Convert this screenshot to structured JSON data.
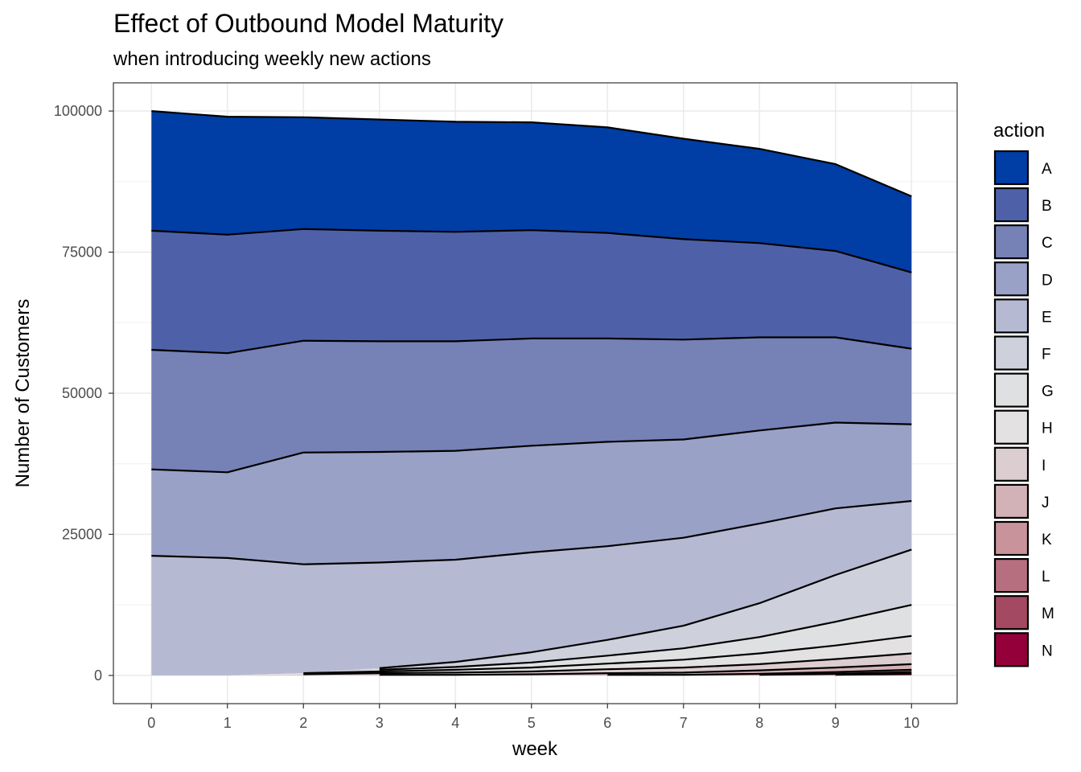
{
  "chart_data": {
    "type": "area",
    "stacked": true,
    "title": "Effect of Outbound Model Maturity",
    "subtitle": "when introducing weekly new actions",
    "xlabel": "week",
    "ylabel": "Number of Customers",
    "xlim": [
      -0.5,
      10.6
    ],
    "ylim": [
      -5000,
      105000
    ],
    "x": [
      0,
      1,
      2,
      3,
      4,
      5,
      6,
      7,
      8,
      9,
      10
    ],
    "x_ticks": [
      "0",
      "1",
      "2",
      "3",
      "4",
      "5",
      "6",
      "7",
      "8",
      "9",
      "10"
    ],
    "y_ticks": [
      0,
      25000,
      50000,
      75000,
      100000
    ],
    "y_tick_labels": [
      "0",
      "25000",
      "50000",
      "75000",
      "100000"
    ],
    "grid": true,
    "legend_title": "action",
    "legend_position": "right",
    "series": [
      {
        "name": "A",
        "color": "#003da5",
        "values": [
          21200,
          20900,
          19800,
          19700,
          19500,
          19100,
          18700,
          17800,
          16700,
          15400,
          13500
        ]
      },
      {
        "name": "B",
        "color": "#4e61a8",
        "values": [
          21100,
          21000,
          19800,
          19600,
          19400,
          19200,
          18700,
          17800,
          16700,
          15300,
          13500
        ]
      },
      {
        "name": "C",
        "color": "#7681b6",
        "values": [
          21200,
          21100,
          19800,
          19600,
          19400,
          19000,
          18300,
          17700,
          16500,
          15100,
          13400
        ]
      },
      {
        "name": "D",
        "color": "#99a1c6",
        "values": [
          15300,
          15200,
          19800,
          19600,
          19300,
          18900,
          18500,
          17400,
          16500,
          15200,
          13600
        ]
      },
      {
        "name": "E",
        "color": "#b6b9d2",
        "values": [
          21200,
          20800,
          19300,
          18700,
          18100,
          17700,
          16600,
          15600,
          14100,
          11800,
          8600
        ]
      },
      {
        "name": "F",
        "color": "#ced1dc",
        "values": [
          0,
          0,
          0,
          300,
          900,
          1800,
          2800,
          4000,
          6000,
          8300,
          9800
        ]
      },
      {
        "name": "G",
        "color": "#dfe0e2",
        "values": [
          0,
          0,
          0,
          300,
          500,
          900,
          1400,
          2000,
          2900,
          4200,
          5500
        ]
      },
      {
        "name": "H",
        "color": "#e3e1e2",
        "values": [
          0,
          0,
          200,
          300,
          500,
          700,
          1000,
          1400,
          1900,
          2400,
          3100
        ]
      },
      {
        "name": "I",
        "color": "#dccdd0",
        "values": [
          0,
          0,
          200,
          300,
          400,
          500,
          700,
          900,
          1100,
          1500,
          1900
        ]
      },
      {
        "name": "J",
        "color": "#d3b2b7",
        "values": [
          0,
          0,
          0,
          100,
          100,
          200,
          300,
          400,
          600,
          800,
          1000
        ]
      },
      {
        "name": "K",
        "color": "#c8939b",
        "values": [
          0,
          0,
          0,
          0,
          0,
          0,
          100,
          100,
          200,
          300,
          400
        ]
      },
      {
        "name": "L",
        "color": "#b66f7e",
        "values": [
          0,
          0,
          0,
          0,
          0,
          0,
          0,
          0,
          100,
          200,
          300
        ]
      },
      {
        "name": "M",
        "color": "#a34a62",
        "values": [
          0,
          0,
          0,
          0,
          0,
          0,
          0,
          0,
          0,
          100,
          200
        ]
      },
      {
        "name": "N",
        "color": "#93003a",
        "values": [
          0,
          0,
          0,
          0,
          0,
          0,
          0,
          0,
          0,
          0,
          100
        ]
      }
    ]
  }
}
